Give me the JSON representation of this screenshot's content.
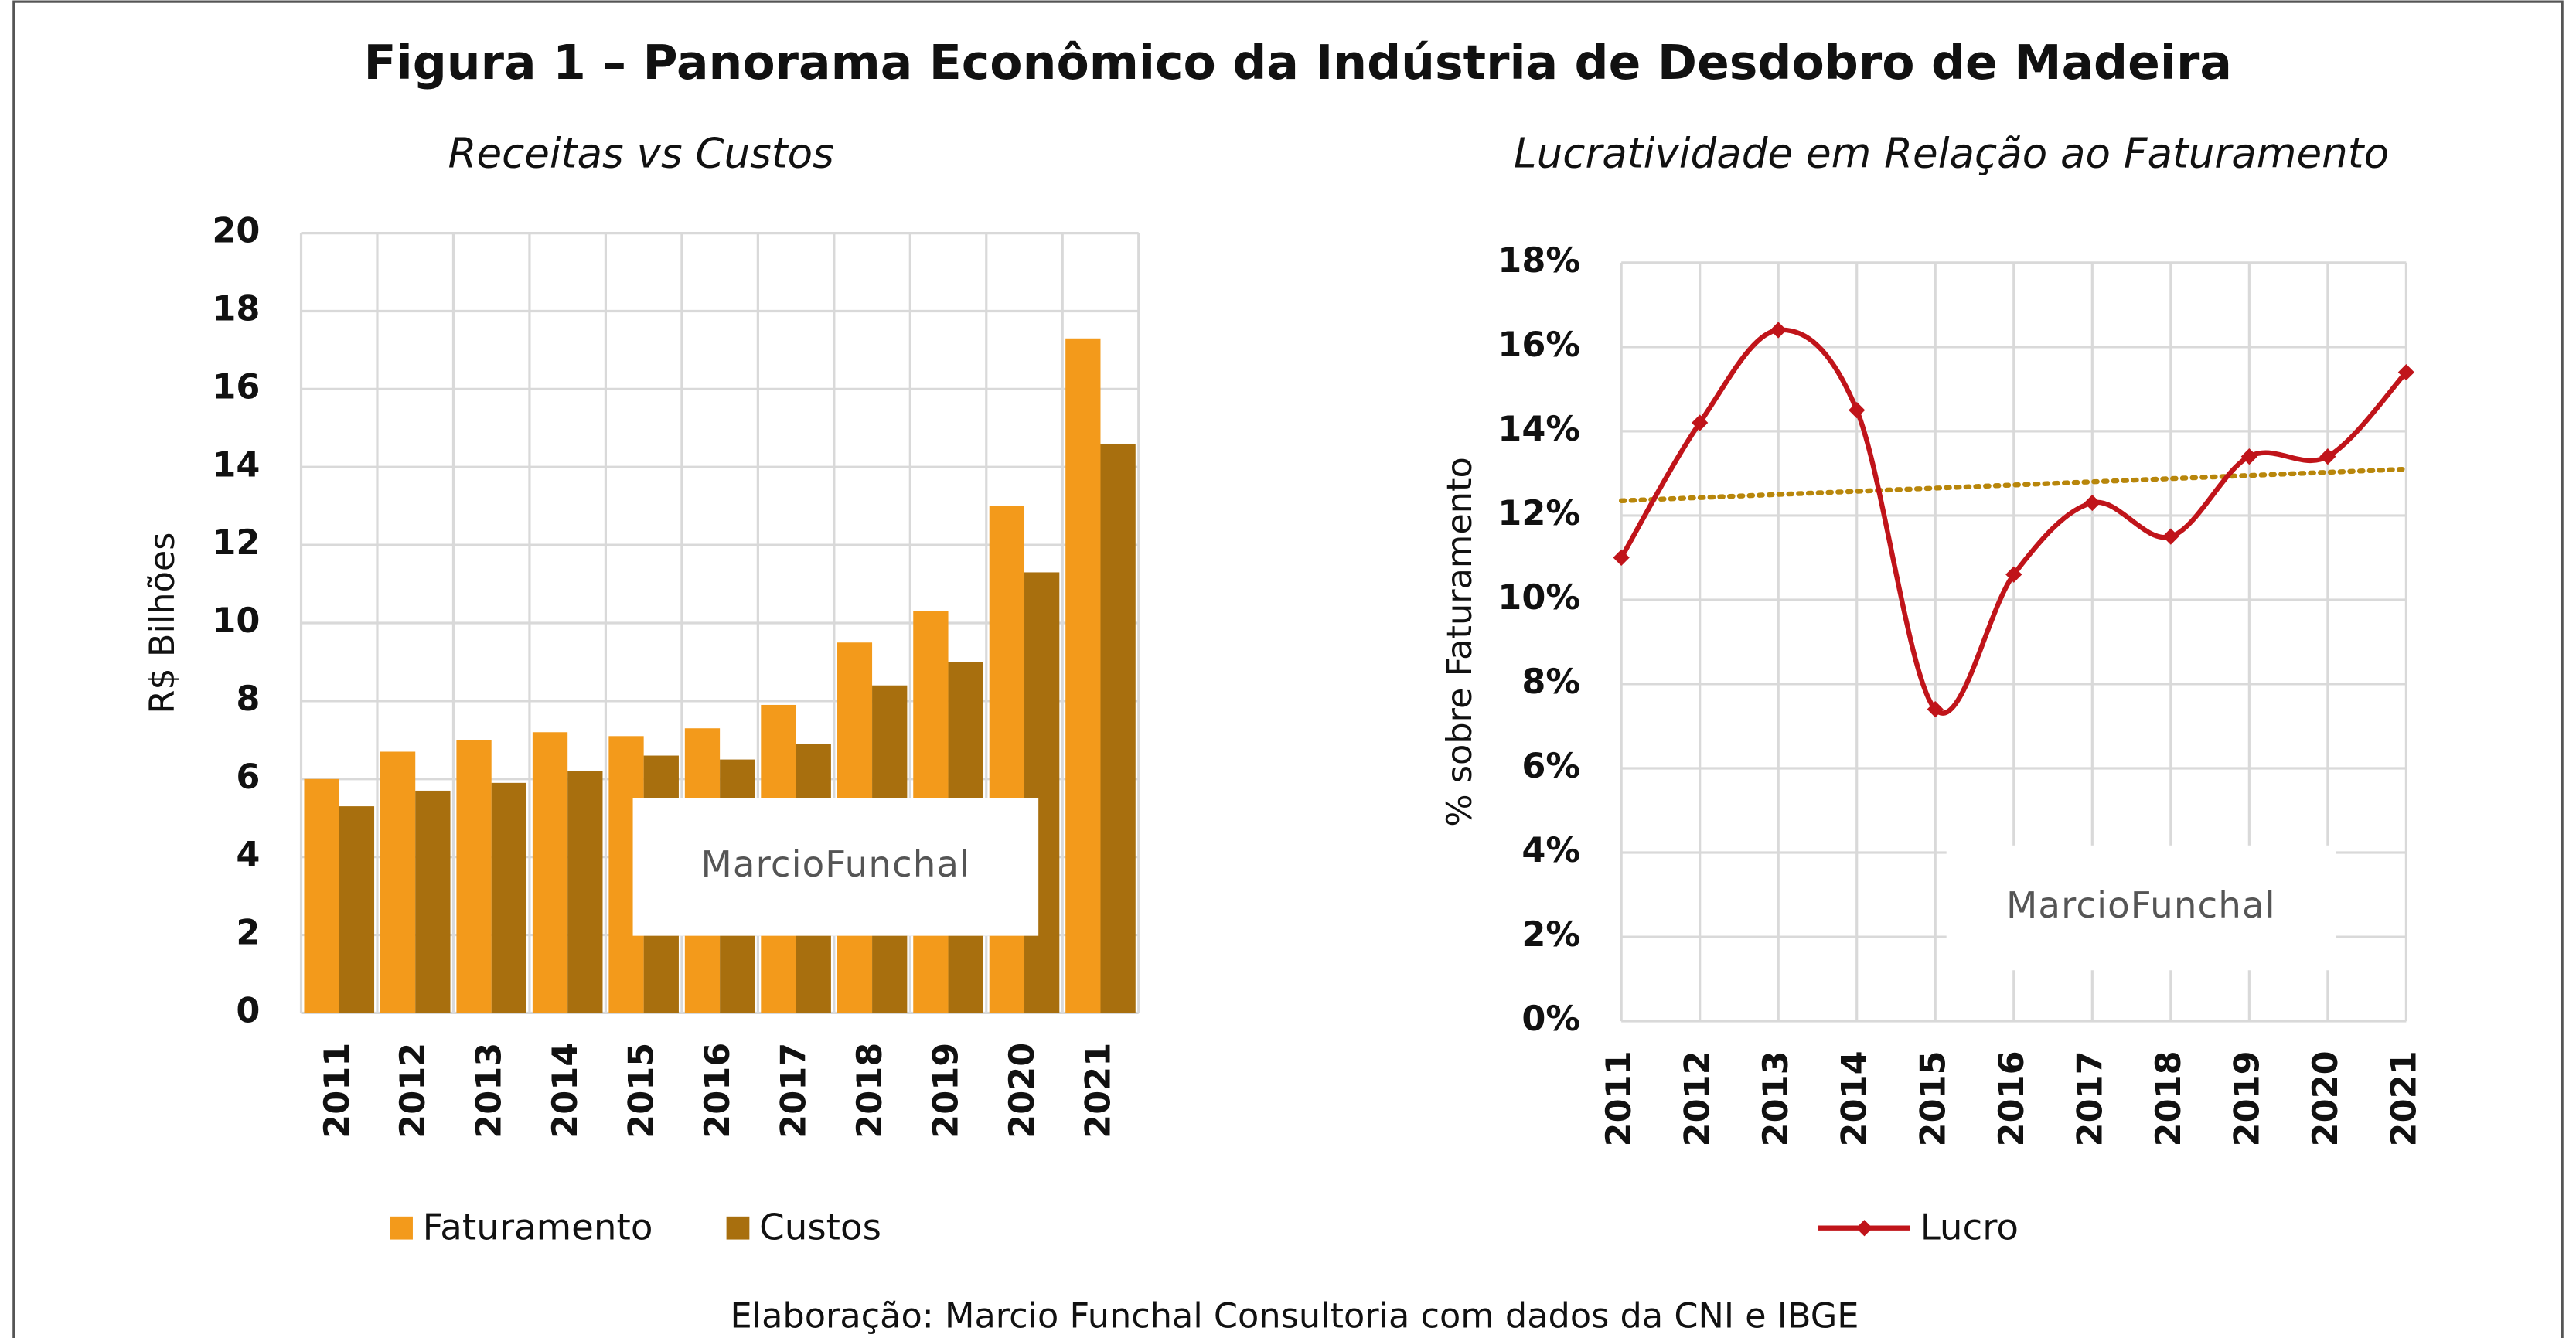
{
  "title": "Figura 1 – Panorama Econômico da Indústria de Desdobro de Madeira",
  "source": "Elaboração: Marcio Funchal Consultoria com dados da CNI e IBGE",
  "watermark": "MarcioFunchal",
  "chart_data": [
    {
      "type": "bar",
      "title": "Receitas vs Custos",
      "y_label": "R$ Bilhões",
      "categories": [
        "2011",
        "2012",
        "2013",
        "2014",
        "2015",
        "2016",
        "2017",
        "2018",
        "2019",
        "2020",
        "2021"
      ],
      "series": [
        {
          "name": "Faturamento",
          "color": "#f39a1b",
          "values": [
            6.0,
            6.7,
            7.0,
            7.2,
            7.1,
            7.3,
            7.9,
            9.5,
            10.3,
            13.0,
            17.3
          ]
        },
        {
          "name": "Custos",
          "color": "#a86f0e",
          "values": [
            5.3,
            5.7,
            5.9,
            6.2,
            6.6,
            6.5,
            6.9,
            8.4,
            9.0,
            11.3,
            14.6
          ]
        }
      ],
      "ylim": [
        0,
        20
      ],
      "yticks": [
        0,
        2,
        4,
        6,
        8,
        10,
        12,
        14,
        16,
        18,
        20
      ],
      "grid": true,
      "legend": "bottom"
    },
    {
      "type": "line",
      "title": "Lucratividade em Relação ao Faturamento",
      "y_label": "% sobre Faturamento",
      "categories": [
        "2011",
        "2012",
        "2013",
        "2014",
        "2015",
        "2016",
        "2017",
        "2018",
        "2019",
        "2020",
        "2021"
      ],
      "series": [
        {
          "name": "Lucro",
          "color": "#c0141a",
          "values": [
            11.0,
            14.2,
            16.4,
            14.5,
            7.4,
            10.6,
            12.3,
            11.5,
            13.4,
            13.4,
            15.4
          ]
        }
      ],
      "trendline": {
        "color": "#b8860b",
        "values": [
          12.35,
          13.1
        ]
      },
      "ylim": [
        0,
        18
      ],
      "yticks": [
        {
          "value": 0,
          "label": "0%"
        },
        {
          "value": 2,
          "label": "2%"
        },
        {
          "value": 4,
          "label": "4%"
        },
        {
          "value": 6,
          "label": "6%"
        },
        {
          "value": 8,
          "label": "8%"
        },
        {
          "value": 10,
          "label": "10%"
        },
        {
          "value": 12,
          "label": "12%"
        },
        {
          "value": 14,
          "label": "14%"
        },
        {
          "value": 16,
          "label": "16%"
        },
        {
          "value": 18,
          "label": "18%"
        }
      ],
      "grid": true,
      "legend": "bottom"
    }
  ]
}
